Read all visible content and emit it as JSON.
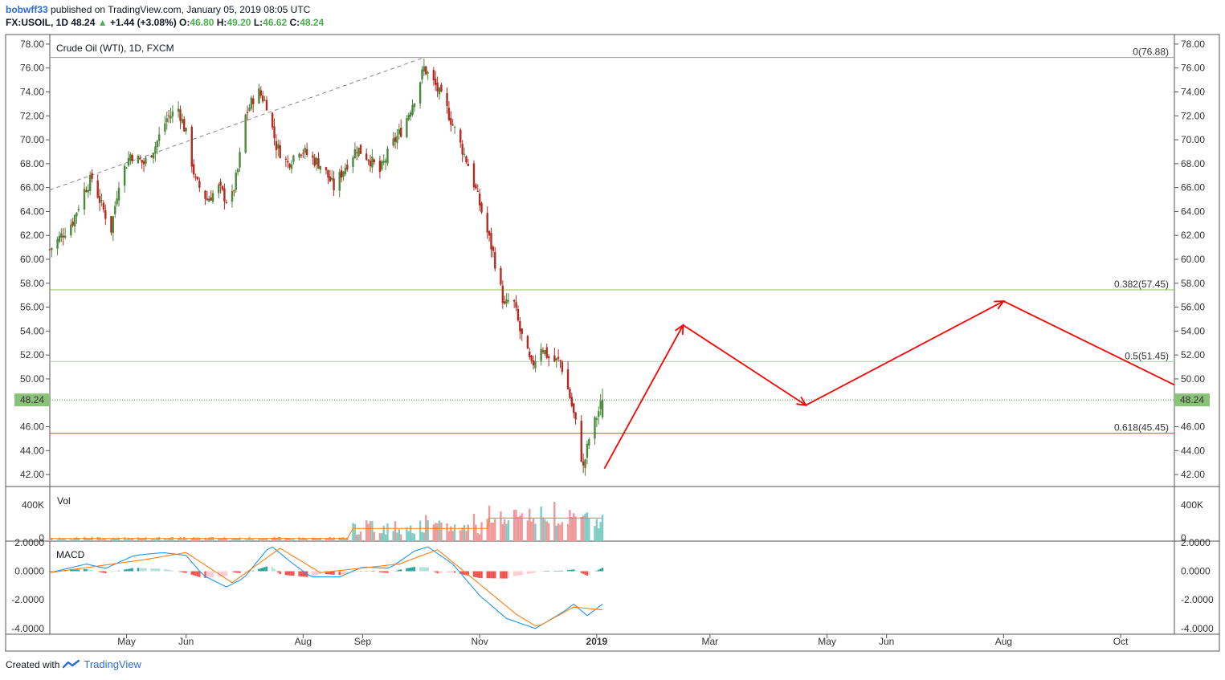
{
  "header": {
    "user": "bobwff33",
    "published": "published on TradingView.com, January 05, 2019 08:05 UTC",
    "symbol": "FX:USOIL, 1D",
    "last": "48.24",
    "change": "+1.44 (+3.08%)",
    "open_label": "O:",
    "open": "46.80",
    "high_label": "H:",
    "high": "49.20",
    "low_label": "L:",
    "low": "46.62",
    "close_label": "C:",
    "close": "48.24"
  },
  "footer": {
    "created_with": "Created with",
    "brand": "TradingView"
  },
  "colors": {
    "up": "#4a8a3a",
    "down": "#b52a20",
    "fib_382": "#8bc34a",
    "fib_05": "#a5d6a7",
    "fib_0": "#9e9e9e",
    "fib_618": "#e53935",
    "projection": "#ff0000",
    "macd_line": "#2196f3",
    "signal_line": "#ff7f0e",
    "price_badge": "#8bc27a"
  },
  "chart_data": {
    "type": "candlestick",
    "title": "Crude Oil (WTI), 1D, FXCM",
    "price_axis": {
      "min": 41,
      "max": 78.8,
      "ticks": [
        "78.00",
        "76.00",
        "74.00",
        "72.00",
        "70.00",
        "68.00",
        "66.00",
        "64.00",
        "62.00",
        "60.00",
        "58.00",
        "56.00",
        "54.00",
        "52.00",
        "50.00",
        "48.00",
        "46.00",
        "44.00",
        "42.00"
      ]
    },
    "time_axis": {
      "start": "2018-03-22",
      "end": "2019-10-29",
      "labels": [
        {
          "label": "May",
          "date": "2018-05-01"
        },
        {
          "label": "Jun",
          "date": "2018-06-01"
        },
        {
          "label": "Aug",
          "date": "2018-08-01"
        },
        {
          "label": "Sep",
          "date": "2018-09-01"
        },
        {
          "label": "Nov",
          "date": "2018-11-01"
        },
        {
          "label": "2019",
          "date": "2019-01-01"
        },
        {
          "label": "Mar",
          "date": "2019-03-01"
        },
        {
          "label": "May",
          "date": "2019-05-01"
        },
        {
          "label": "Jun",
          "date": "2019-06-01"
        },
        {
          "label": "Aug",
          "date": "2019-08-01"
        },
        {
          "label": "Oct",
          "date": "2019-10-01"
        }
      ]
    },
    "last_price": "48.24",
    "price_path": [
      [
        "2018-03-22",
        60.8
      ],
      [
        "2018-03-28",
        62.0
      ],
      [
        "2018-04-03",
        63.2
      ],
      [
        "2018-04-09",
        65.8
      ],
      [
        "2018-04-13",
        66.8
      ],
      [
        "2018-04-18",
        64.5
      ],
      [
        "2018-04-23",
        62.5
      ],
      [
        "2018-04-27",
        66.5
      ],
      [
        "2018-05-03",
        68.8
      ],
      [
        "2018-05-10",
        68.0
      ],
      [
        "2018-05-16",
        69.5
      ],
      [
        "2018-05-22",
        71.8
      ],
      [
        "2018-05-28",
        72.6
      ],
      [
        "2018-06-01",
        70.5
      ],
      [
        "2018-06-06",
        66.5
      ],
      [
        "2018-06-12",
        65.0
      ],
      [
        "2018-06-18",
        66.0
      ],
      [
        "2018-06-24",
        64.5
      ],
      [
        "2018-06-28",
        67.5
      ],
      [
        "2018-07-02",
        72.0
      ],
      [
        "2018-07-08",
        74.2
      ],
      [
        "2018-07-13",
        73.0
      ],
      [
        "2018-07-18",
        69.5
      ],
      [
        "2018-07-24",
        68.0
      ],
      [
        "2018-07-30",
        69.3
      ],
      [
        "2018-08-05",
        68.5
      ],
      [
        "2018-08-11",
        67.8
      ],
      [
        "2018-08-17",
        66.0
      ],
      [
        "2018-08-23",
        67.8
      ],
      [
        "2018-08-29",
        69.3
      ],
      [
        "2018-09-04",
        68.5
      ],
      [
        "2018-09-10",
        67.3
      ],
      [
        "2018-09-16",
        69.5
      ],
      [
        "2018-09-22",
        71.0
      ],
      [
        "2018-09-28",
        73.5
      ],
      [
        "2018-10-03",
        76.0
      ],
      [
        "2018-10-09",
        74.5
      ],
      [
        "2018-10-15",
        72.5
      ],
      [
        "2018-10-21",
        70.0
      ],
      [
        "2018-10-27",
        67.5
      ],
      [
        "2018-11-02",
        64.0
      ],
      [
        "2018-11-08",
        60.5
      ],
      [
        "2018-11-14",
        56.0
      ],
      [
        "2018-11-18",
        57.0
      ],
      [
        "2018-11-22",
        54.0
      ],
      [
        "2018-11-28",
        51.0
      ],
      [
        "2018-12-03",
        52.8
      ],
      [
        "2018-12-08",
        51.5
      ],
      [
        "2018-12-13",
        51.5
      ],
      [
        "2018-12-18",
        48.5
      ],
      [
        "2018-12-22",
        45.5
      ],
      [
        "2018-12-25",
        42.5
      ],
      [
        "2018-12-28",
        45.0
      ],
      [
        "2019-01-04",
        48.24
      ]
    ],
    "volume_axis": {
      "ticks": [
        "400K",
        "0"
      ]
    },
    "macd_axis": {
      "ticks": [
        "2.0000",
        "0.0000",
        "-2.0000",
        "-4.0000"
      ]
    },
    "macd_path": [
      [
        "2018-03-22",
        -0.1
      ],
      [
        "2018-04-10",
        0.5
      ],
      [
        "2018-04-20",
        0.2
      ],
      [
        "2018-05-05",
        1.1
      ],
      [
        "2018-05-20",
        1.3
      ],
      [
        "2018-06-01",
        1.1
      ],
      [
        "2018-06-10",
        -0.3
      ],
      [
        "2018-06-22",
        -1.1
      ],
      [
        "2018-07-01",
        -0.5
      ],
      [
        "2018-07-15",
        1.8
      ],
      [
        "2018-07-25",
        0.7
      ],
      [
        "2018-08-05",
        -0.4
      ],
      [
        "2018-08-20",
        -0.4
      ],
      [
        "2018-09-01",
        0.3
      ],
      [
        "2018-09-15",
        0.2
      ],
      [
        "2018-09-28",
        1.4
      ],
      [
        "2018-10-05",
        1.7
      ],
      [
        "2018-10-18",
        0.5
      ],
      [
        "2018-11-01",
        -1.7
      ],
      [
        "2018-11-15",
        -3.3
      ],
      [
        "2018-11-30",
        -4.0
      ],
      [
        "2018-12-15",
        -2.8
      ],
      [
        "2018-12-20",
        -2.3
      ],
      [
        "2018-12-27",
        -3.1
      ],
      [
        "2019-01-04",
        -2.3
      ]
    ],
    "signal_path": [
      [
        "2018-03-22",
        -0.1
      ],
      [
        "2018-05-10",
        0.8
      ],
      [
        "2018-06-01",
        1.3
      ],
      [
        "2018-06-25",
        -0.8
      ],
      [
        "2018-07-20",
        1.6
      ],
      [
        "2018-08-10",
        -0.1
      ],
      [
        "2018-09-20",
        0.5
      ],
      [
        "2018-10-10",
        1.5
      ],
      [
        "2018-11-01",
        -0.9
      ],
      [
        "2018-11-20",
        -3.0
      ],
      [
        "2018-12-01",
        -3.9
      ],
      [
        "2018-12-20",
        -2.5
      ],
      [
        "2019-01-04",
        -2.7
      ]
    ],
    "drawings": {
      "trendline": [
        [
          "2018-03-22",
          65.8
        ],
        [
          "2018-10-03",
          76.88
        ]
      ],
      "fib_levels": [
        {
          "label": "0(76.88)",
          "value": 76.88
        },
        {
          "label": "0.382(57.45)",
          "value": 57.45
        },
        {
          "label": "0.5(51.45)",
          "value": 51.45
        },
        {
          "label": "0.618(45.45)",
          "value": 45.45
        }
      ],
      "projection": [
        [
          "2019-01-05",
          42.5
        ],
        [
          "2019-02-15",
          54.5
        ],
        [
          "2019-04-20",
          47.8
        ],
        [
          "2019-08-01",
          56.5
        ],
        [
          "2019-10-29",
          49.5
        ]
      ]
    },
    "volume_label": "Vol",
    "macd_label": "MACD"
  }
}
